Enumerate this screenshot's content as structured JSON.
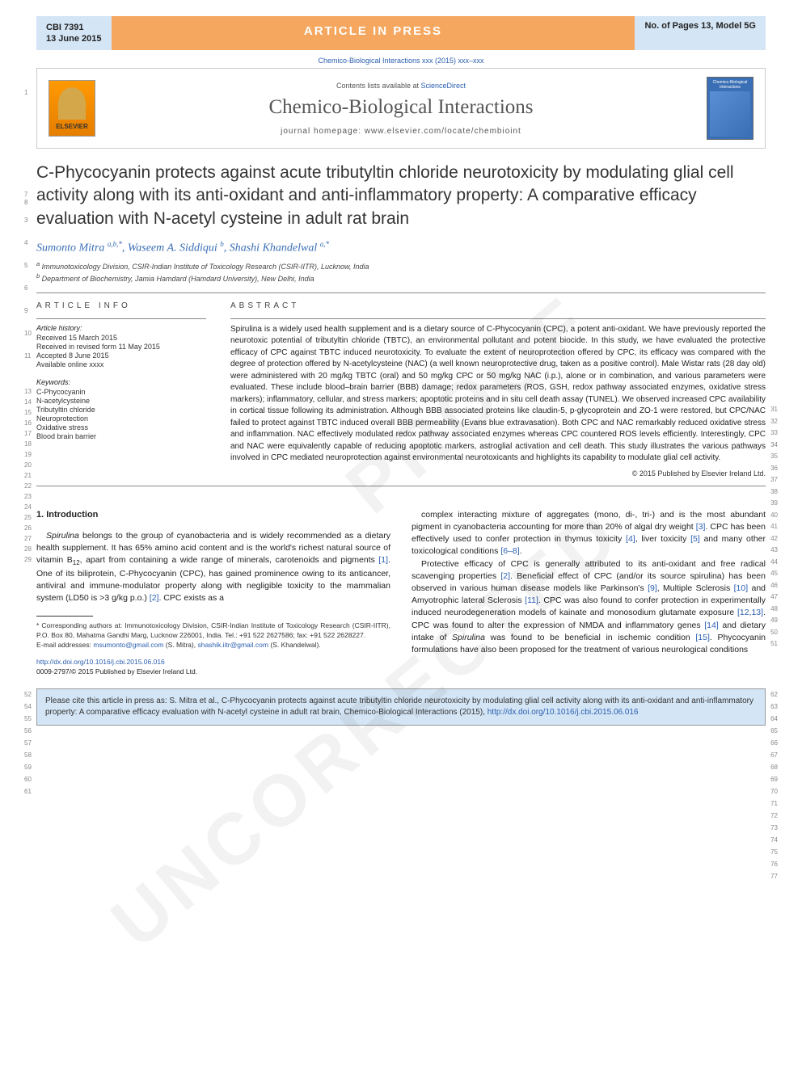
{
  "header": {
    "code": "CBI 7391",
    "date": "13 June 2015",
    "banner": "ARTICLE IN PRESS",
    "pages_info": "No. of Pages 13, Model 5G"
  },
  "journal_ref": "Chemico-Biological Interactions xxx (2015) xxx–xxx",
  "journal_box": {
    "publisher": "ELSEVIER",
    "contents_prefix": "Contents lists available at ",
    "contents_link": "ScienceDirect",
    "journal_name": "Chemico-Biological Interactions",
    "homepage_prefix": "journal homepage: ",
    "homepage": "www.elsevier.com/locate/chembioint",
    "cover_title": "Chemico-Biological Interactions"
  },
  "title": "C-Phycocyanin protects against acute tributyltin chloride neurotoxicity by modulating glial cell activity along with its anti-oxidant and anti-inflammatory property: A comparative efficacy evaluation with N-acetyl cysteine in adult rat brain",
  "authors_html": "Sumonto Mitra <sup>a,b,</sup><sup class='author-link'>*</sup>, Waseem A. Siddiqui <sup>b</sup>, Shashi Khandelwal <sup>a,</sup><sup class='author-link'>*</sup>",
  "affiliations": [
    "a Immunotoxicology Division, CSIR-Indian Institute of Toxicology Research (CSIR-IITR), Lucknow, India",
    "b Department of Biochemistry, Jamia Hamdard (Hamdard University), New Delhi, India"
  ],
  "article_info": {
    "label": "ARTICLE INFO",
    "history_heading": "Article history:",
    "history": [
      "Received 15 March 2015",
      "Received in revised form 11 May 2015",
      "Accepted 8 June 2015",
      "Available online xxxx"
    ],
    "keywords_heading": "Keywords:",
    "keywords": [
      "C-Phycocyanin",
      "N-acetylcysteine",
      "Tributyltin chloride",
      "Neuroprotection",
      "Oxidative stress",
      "Blood brain barrier"
    ]
  },
  "abstract": {
    "label": "ABSTRACT",
    "text": "Spirulina is a widely used health supplement and is a dietary source of C-Phycocyanin (CPC), a potent anti-oxidant. We have previously reported the neurotoxic potential of tributyltin chloride (TBTC), an environmental pollutant and potent biocide. In this study, we have evaluated the protective efficacy of CPC against TBTC induced neurotoxicity. To evaluate the extent of neuroprotection offered by CPC, its efficacy was compared with the degree of protection offered by N-acetylcysteine (NAC) (a well known neuroprotective drug, taken as a positive control). Male Wistar rats (28 day old) were administered with 20 mg/kg TBTC (oral) and 50 mg/kg CPC or 50 mg/kg NAC (i.p.), alone or in combination, and various parameters were evaluated. These include blood–brain barrier (BBB) damage; redox parameters (ROS, GSH, redox pathway associated enzymes, oxidative stress markers); inflammatory, cellular, and stress markers; apoptotic proteins and in situ cell death assay (TUNEL). We observed increased CPC availability in cortical tissue following its administration. Although BBB associated proteins like claudin-5, p-glycoprotein and ZO-1 were restored, but CPC/NAC failed to protect against TBTC induced overall BBB permeability (Evans blue extravasation). Both CPC and NAC remarkably reduced oxidative stress and inflammation. NAC effectively modulated redox pathway associated enzymes whereas CPC countered ROS levels efficiently. Interestingly, CPC and NAC were equivalently capable of reducing apoptotic markers, astroglial activation and cell death. This study illustrates the various pathways involved in CPC mediated neuroprotection against environmental neurotoxicants and highlights its capability to modulate glial cell activity.",
    "copyright": "© 2015 Published by Elsevier Ireland Ltd."
  },
  "body": {
    "section_heading": "1. Introduction",
    "col1": "Spirulina belongs to the group of cyanobacteria and is widely recommended as a dietary health supplement. It has 65% amino acid content and is the world's richest natural source of vitamin B12, apart from containing a wide range of minerals, carotenoids and pigments [1]. One of its biliprotein, C-Phycocyanin (CPC), has gained prominence owing to its anticancer, antiviral and immune-modulator property along with negligible toxicity to the mammalian system (LD50 is >3 g/kg p.o.) [2]. CPC exists as a",
    "col2_p1": "complex interacting mixture of aggregates (mono, di-, tri-) and is the most abundant pigment in cyanobacteria accounting for more than 20% of algal dry weight [3]. CPC has been effectively used to confer protection in thymus toxicity [4], liver toxicity [5] and many other toxicological conditions [6–8].",
    "col2_p2": "Protective efficacy of CPC is generally attributed to its anti-oxidant and free radical scavenging properties [2]. Beneficial effect of CPC (and/or its source spirulina) has been observed in various human disease models like Parkinson's [9], Multiple Sclerosis [10] and Amyotrophic lateral Sclerosis [11]. CPC was also found to confer protection in experimentally induced neurodegeneration models of kainate and monosodium glutamate exposure [12,13]. CPC was found to alter the expression of NMDA and inflammatory genes [14] and dietary intake of Spirulina was found to be beneficial in ischemic condition [15]. Phycocyanin formulations have also been proposed for the treatment of various neurological conditions"
  },
  "footnote": {
    "corresponding": "* Corresponding authors at: Immunotoxicology Division, CSIR-Indian Institute of Toxicology Research (CSIR-IITR), P.O. Box 80, Mahatma Gandhi Marg, Lucknow 226001, India. Tel.: +91 522 2627586; fax: +91 522 2628227.",
    "email_label": "E-mail addresses: ",
    "email1": "msumonto@gmail.com",
    "email1_name": " (S. Mitra), ",
    "email2": "shashik.iitr@gmail.com",
    "email2_name": " (S. Khandelwal)."
  },
  "doi": {
    "link": "http://dx.doi.org/10.1016/j.cbi.2015.06.016",
    "issn": "0009-2797/© 2015 Published by Elsevier Ireland Ltd."
  },
  "cite_box": "Please cite this article in press as: S. Mitra et al., C-Phycocyanin protects against acute tributyltin chloride neurotoxicity by modulating glial cell activity along with its anti-oxidant and anti-inflammatory property: A comparative efficacy evaluation with N-acetyl cysteine in adult rat brain, Chemico-Biological Interactions (2015), http://dx.doi.org/10.1016/j.cbi.2015.06.016",
  "line_numbers": {
    "left_title": [
      "3",
      "4",
      "5",
      "6",
      "9",
      "10",
      "11"
    ],
    "left_info_start": [
      "13",
      "14",
      "15",
      "16",
      "17",
      "18",
      "19",
      "20",
      "21",
      "22",
      "23",
      "24",
      "25",
      "26",
      "27",
      "28",
      "29"
    ],
    "right_abstract": [
      "31",
      "32",
      "33",
      "34",
      "35",
      "36",
      "37",
      "38",
      "39",
      "40",
      "41",
      "42",
      "43",
      "44",
      "45",
      "46",
      "47",
      "48",
      "49",
      "50",
      "51"
    ],
    "left_body": [
      "52",
      "54",
      "55",
      "56",
      "57",
      "58",
      "59",
      "60",
      "61"
    ],
    "right_body": [
      "62",
      "63",
      "64",
      "65",
      "66",
      "67",
      "68",
      "69",
      "70",
      "71",
      "72",
      "73",
      "74",
      "75",
      "76",
      "77"
    ],
    "margin_1": "1",
    "margin_7_8": [
      "7",
      "8"
    ]
  },
  "colors": {
    "header_blue": "#d4e5f5",
    "header_orange": "#f5a75f",
    "link_blue": "#2a5fb0",
    "text_gray": "#555"
  }
}
